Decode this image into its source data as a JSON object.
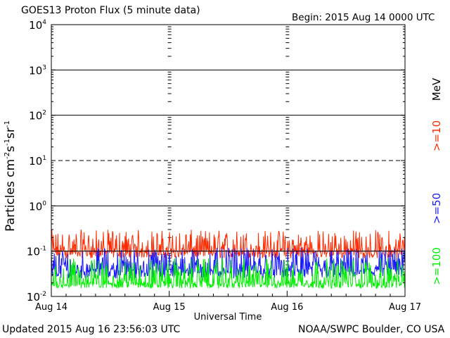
{
  "header": {
    "title": "GOES13 Proton Flux (5 minute data)",
    "begin": "Begin: 2015 Aug 14 0000 UTC"
  },
  "footer": {
    "updated": "Updated 2015 Aug 16 23:56:03 UTC",
    "credit": "NOAA/SWPC Boulder, CO USA"
  },
  "chart_data": {
    "type": "line",
    "title": "GOES13 Proton Flux (5 minute data)",
    "xlabel": "Universal Time",
    "ylabel": "Particles cm-2 s-1 sr-1",
    "y_scale": "log",
    "ylim": [
      0.01,
      10000
    ],
    "y_ticks": [
      {
        "value": 0.01,
        "base": "10",
        "exp": "-2"
      },
      {
        "value": 0.1,
        "base": "10",
        "exp": "-1"
      },
      {
        "value": 1,
        "base": "10",
        "exp": "0"
      },
      {
        "value": 10,
        "base": "10",
        "exp": "1"
      },
      {
        "value": 100,
        "base": "10",
        "exp": "2"
      },
      {
        "value": 1000,
        "base": "10",
        "exp": "3"
      },
      {
        "value": 10000,
        "base": "10",
        "exp": "4"
      }
    ],
    "x_ticks": [
      "Aug 14",
      "Aug 15",
      "Aug 16",
      "Aug 17"
    ],
    "xlim": [
      "2015-08-14 00:00",
      "2015-08-17 00:00"
    ],
    "threshold_lines": [
      {
        "value": 10,
        "style": "dashed"
      },
      {
        "value": 0.1,
        "style": "solid"
      }
    ],
    "legend_unit": "MeV",
    "legend_placement": "right, rotated",
    "series": [
      {
        "name": ">=10",
        "color": "#ff2a00",
        "baseline": 0.1,
        "range": [
          0.07,
          0.3
        ]
      },
      {
        "name": ">=50",
        "color": "#1a1aff",
        "baseline": 0.04,
        "range": [
          0.025,
          0.12
        ]
      },
      {
        "name": ">=100",
        "color": "#00ee00",
        "baseline": 0.02,
        "range": [
          0.015,
          0.07
        ]
      }
    ]
  }
}
